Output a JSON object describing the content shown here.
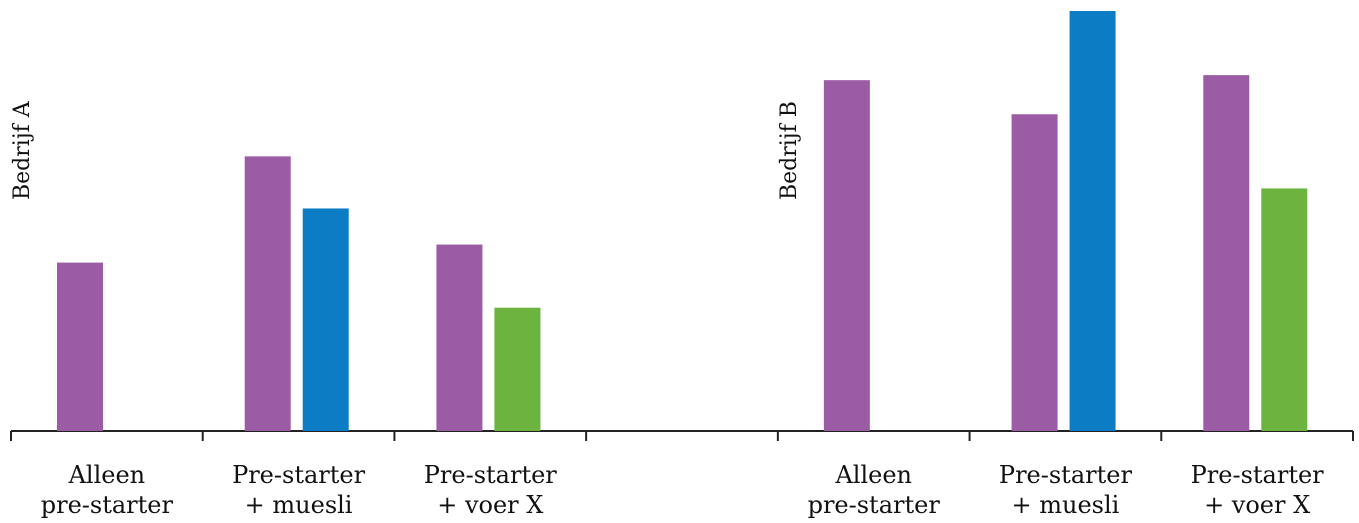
{
  "chart_data": {
    "type": "bar",
    "groups": [
      {
        "label": "Bedrijf A",
        "categories": [
          "Alleen pre-starter",
          "Pre-starter + muesli",
          "Pre-starter + voer X"
        ],
        "bars": [
          [
            {
              "value": 168,
              "color": "#9b5ba5"
            }
          ],
          [
            {
              "value": 274,
              "color": "#9b5ba5"
            },
            {
              "value": 222,
              "color": "#0c7dc4"
            }
          ],
          [
            {
              "value": 186,
              "color": "#9b5ba5"
            },
            {
              "value": 123,
              "color": "#6db33f"
            }
          ]
        ]
      },
      {
        "label": "Bedrijf B",
        "categories": [
          "Alleen pre-starter",
          "Pre-starter + muesli",
          "Pre-starter + voer X"
        ],
        "bars": [
          [
            {
              "value": 350,
              "color": "#9b5ba5"
            }
          ],
          [
            {
              "value": 316,
              "color": "#9b5ba5"
            },
            {
              "value": 419,
              "color": "#0c7dc4"
            }
          ],
          [
            {
              "value": 355,
              "color": "#9b5ba5"
            },
            {
              "value": 242,
              "color": "#6db33f"
            }
          ]
        ]
      }
    ],
    "ylim": [
      0,
      420
    ],
    "grid": false,
    "colors": {
      "pre_starter": "#9b5ba5",
      "muesli": "#0c7dc4",
      "voer_x": "#6db33f",
      "axis": "#222222"
    }
  }
}
